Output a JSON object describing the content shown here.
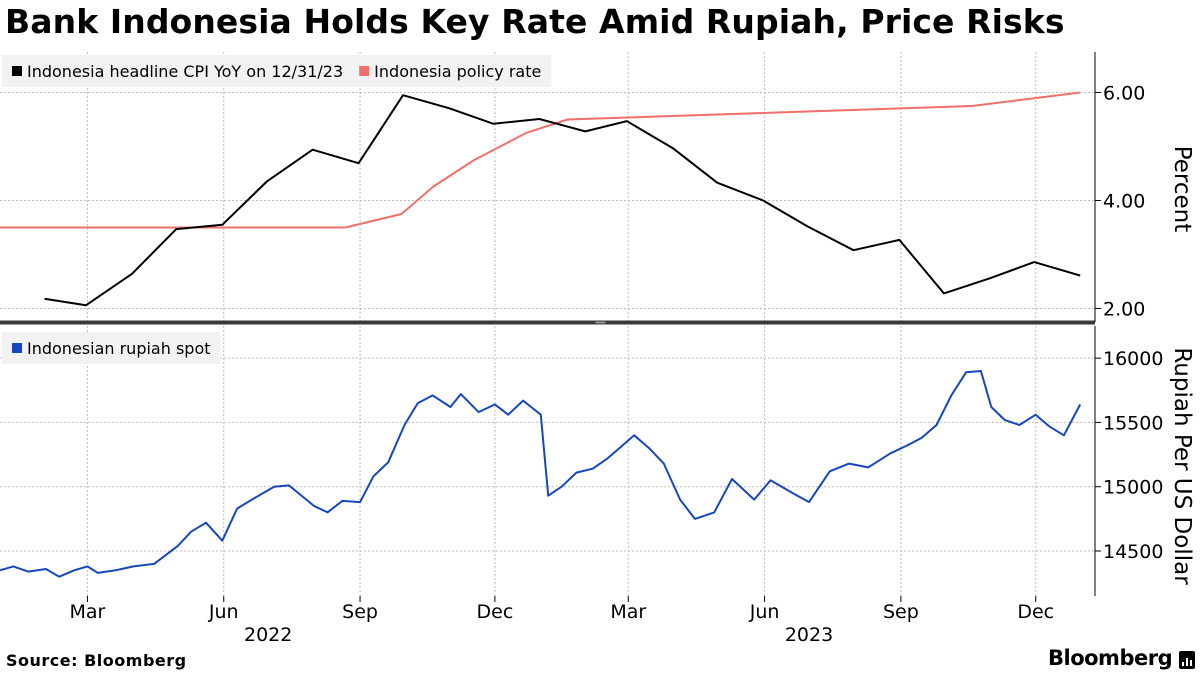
{
  "title": "Bank Indonesia Holds Key Rate Amid Rupiah, Price Risks",
  "source": "Source: Bloomberg",
  "brand": "Bloomberg",
  "colors": {
    "cpi": "#000000",
    "policy": "#f26f6b",
    "rupiah": "#1646c2",
    "grid": "#bdbdbd",
    "legend_bg": "#f2f2f2"
  },
  "chart_data": [
    {
      "type": "line",
      "title": "Bank Indonesia Holds Key Rate Amid Rupiah, Price Risks",
      "ylabel": "Percent",
      "ylim": [
        1.75,
        6.75
      ],
      "yticks": [
        2,
        4,
        6
      ],
      "ytick_labels": [
        "2.00",
        "4.00",
        "6.00"
      ],
      "xlim": [
        "2022-01-01",
        "2024-01-10"
      ],
      "series": [
        {
          "name": "Indonesia headline CPI YoY on 12/31/23",
          "x": [
            "2022-01-31",
            "2022-02-28",
            "2022-03-31",
            "2022-04-30",
            "2022-05-31",
            "2022-06-30",
            "2022-07-31",
            "2022-08-31",
            "2022-09-30",
            "2022-10-31",
            "2022-11-30",
            "2022-12-31",
            "2023-01-31",
            "2023-02-28",
            "2023-03-31",
            "2023-04-30",
            "2023-05-31",
            "2023-06-30",
            "2023-07-31",
            "2023-08-31",
            "2023-09-30",
            "2023-10-31",
            "2023-11-30",
            "2023-12-31"
          ],
          "values": [
            2.18,
            2.06,
            2.64,
            3.47,
            3.55,
            4.35,
            4.94,
            4.69,
            5.95,
            5.71,
            5.42,
            5.51,
            5.28,
            5.47,
            4.97,
            4.33,
            4.0,
            3.52,
            3.08,
            3.27,
            2.28,
            2.56,
            2.86,
            2.61
          ]
        },
        {
          "name": "Indonesia policy rate",
          "x": [
            "2022-01-01",
            "2022-08-22",
            "2022-09-29",
            "2022-10-20",
            "2022-11-17",
            "2022-12-22",
            "2023-01-19",
            "2023-10-19",
            "2023-12-31"
          ],
          "values": [
            3.5,
            3.5,
            3.75,
            4.25,
            4.75,
            5.25,
            5.5,
            5.75,
            6.0
          ]
        }
      ]
    },
    {
      "type": "line",
      "ylabel": "Rupiah Per US Dollar",
      "ylim": [
        14150,
        16250
      ],
      "yticks": [
        14500,
        15000,
        15500,
        16000
      ],
      "ytick_labels": [
        "14500",
        "15000",
        "15500",
        "16000"
      ],
      "xlim": [
        "2022-01-01",
        "2024-01-10"
      ],
      "series": [
        {
          "name": "Indonesian rupiah spot",
          "x": [
            "2022-01-01",
            "2022-01-10",
            "2022-01-20",
            "2022-02-01",
            "2022-02-10",
            "2022-02-20",
            "2022-03-01",
            "2022-03-08",
            "2022-03-20",
            "2022-04-01",
            "2022-04-15",
            "2022-05-01",
            "2022-05-10",
            "2022-05-20",
            "2022-05-31",
            "2022-06-10",
            "2022-06-20",
            "2022-07-05",
            "2022-07-15",
            "2022-08-01",
            "2022-08-10",
            "2022-08-20",
            "2022-09-01",
            "2022-09-10",
            "2022-09-20",
            "2022-10-01",
            "2022-10-10",
            "2022-10-20",
            "2022-11-01",
            "2022-11-08",
            "2022-11-20",
            "2022-12-01",
            "2022-12-10",
            "2022-12-20",
            "2023-01-01",
            "2023-01-06",
            "2023-01-15",
            "2023-01-25",
            "2023-02-05",
            "2023-02-15",
            "2023-02-25",
            "2023-03-05",
            "2023-03-15",
            "2023-03-25",
            "2023-04-05",
            "2023-04-15",
            "2023-04-28",
            "2023-05-10",
            "2023-05-25",
            "2023-06-05",
            "2023-06-20",
            "2023-07-01",
            "2023-07-15",
            "2023-07-28",
            "2023-08-10",
            "2023-08-25",
            "2023-09-05",
            "2023-09-15",
            "2023-09-25",
            "2023-10-05",
            "2023-10-15",
            "2023-10-25",
            "2023-11-01",
            "2023-11-10",
            "2023-11-20",
            "2023-12-01",
            "2023-12-10",
            "2023-12-20",
            "2023-12-31"
          ],
          "values": [
            14350,
            14380,
            14340,
            14360,
            14300,
            14350,
            14380,
            14330,
            14350,
            14380,
            14400,
            14540,
            14650,
            14720,
            14580,
            14830,
            14900,
            15000,
            15010,
            14850,
            14800,
            14890,
            14880,
            15080,
            15190,
            15480,
            15650,
            15710,
            15620,
            15720,
            15580,
            15640,
            15560,
            15670,
            15560,
            14930,
            15000,
            15110,
            15140,
            15220,
            15320,
            15400,
            15300,
            15180,
            14900,
            14750,
            14800,
            15060,
            14900,
            15050,
            14950,
            14880,
            15120,
            15180,
            15150,
            15260,
            15320,
            15380,
            15480,
            15710,
            15890,
            15900,
            15620,
            15520,
            15480,
            15560,
            15470,
            15400,
            15640
          ]
        }
      ]
    }
  ],
  "x_axis": {
    "month_ticks": [
      {
        "date": "2022-03-01",
        "label": "Mar"
      },
      {
        "date": "2022-06-01",
        "label": "Jun"
      },
      {
        "date": "2022-09-01",
        "label": "Sep"
      },
      {
        "date": "2022-12-01",
        "label": "Dec"
      },
      {
        "date": "2023-03-01",
        "label": "Mar"
      },
      {
        "date": "2023-06-01",
        "label": "Jun"
      },
      {
        "date": "2023-09-01",
        "label": "Sep"
      },
      {
        "date": "2023-12-01",
        "label": "Dec"
      }
    ],
    "year_labels": [
      {
        "date": "2022-07-01",
        "label": "2022"
      },
      {
        "date": "2023-07-01",
        "label": "2023"
      }
    ]
  }
}
